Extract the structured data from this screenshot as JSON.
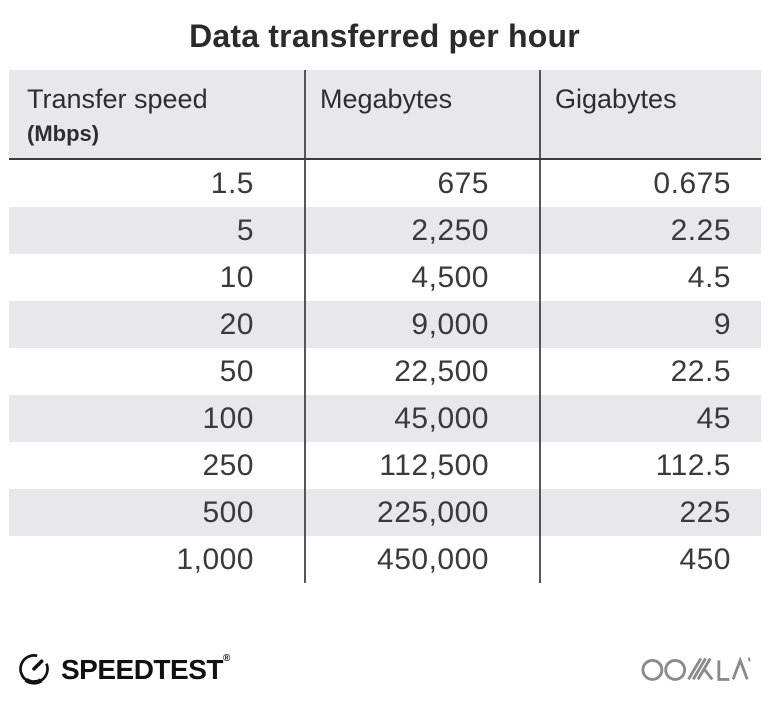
{
  "title": "Data transferred per hour",
  "table": {
    "columns": [
      {
        "label": "Transfer speed",
        "sublabel": "(Mbps)"
      },
      {
        "label": "Megabytes"
      },
      {
        "label": "Gigabytes"
      }
    ],
    "rows": [
      [
        "1.5",
        "675",
        "0.675"
      ],
      [
        "5",
        "2,250",
        "2.25"
      ],
      [
        "10",
        "4,500",
        "4.5"
      ],
      [
        "20",
        "9,000",
        "9"
      ],
      [
        "50",
        "22,500",
        "22.5"
      ],
      [
        "100",
        "45,000",
        "45"
      ],
      [
        "250",
        "112,500",
        "112.5"
      ],
      [
        "500",
        "225,000",
        "225"
      ],
      [
        "1,000",
        "450,000",
        "450"
      ]
    ]
  },
  "chart_data": {
    "type": "table",
    "title": "Data transferred per hour",
    "columns": [
      "Transfer speed (Mbps)",
      "Megabytes",
      "Gigabytes"
    ],
    "rows": [
      [
        1.5,
        675,
        0.675
      ],
      [
        5,
        2250,
        2.25
      ],
      [
        10,
        4500,
        4.5
      ],
      [
        20,
        9000,
        9
      ],
      [
        50,
        22500,
        22.5
      ],
      [
        100,
        45000,
        45
      ],
      [
        250,
        112500,
        112.5
      ],
      [
        500,
        225000,
        225
      ],
      [
        1000,
        450000,
        450
      ]
    ]
  },
  "footer": {
    "speedtest_label": "SPEEDTEST",
    "speedtest_trademark": "®",
    "ookla_label": "OOKLA"
  },
  "colors": {
    "header_bg": "#e8e8ec",
    "stripe_bg": "#e8e8ec",
    "divider": "#55555a",
    "header_border": "#3b3b3c",
    "title_text": "#2b2b2b",
    "number_text": "#3a3a3a",
    "logo_black": "#111111",
    "ookla_gray": "#8a8a8a"
  }
}
